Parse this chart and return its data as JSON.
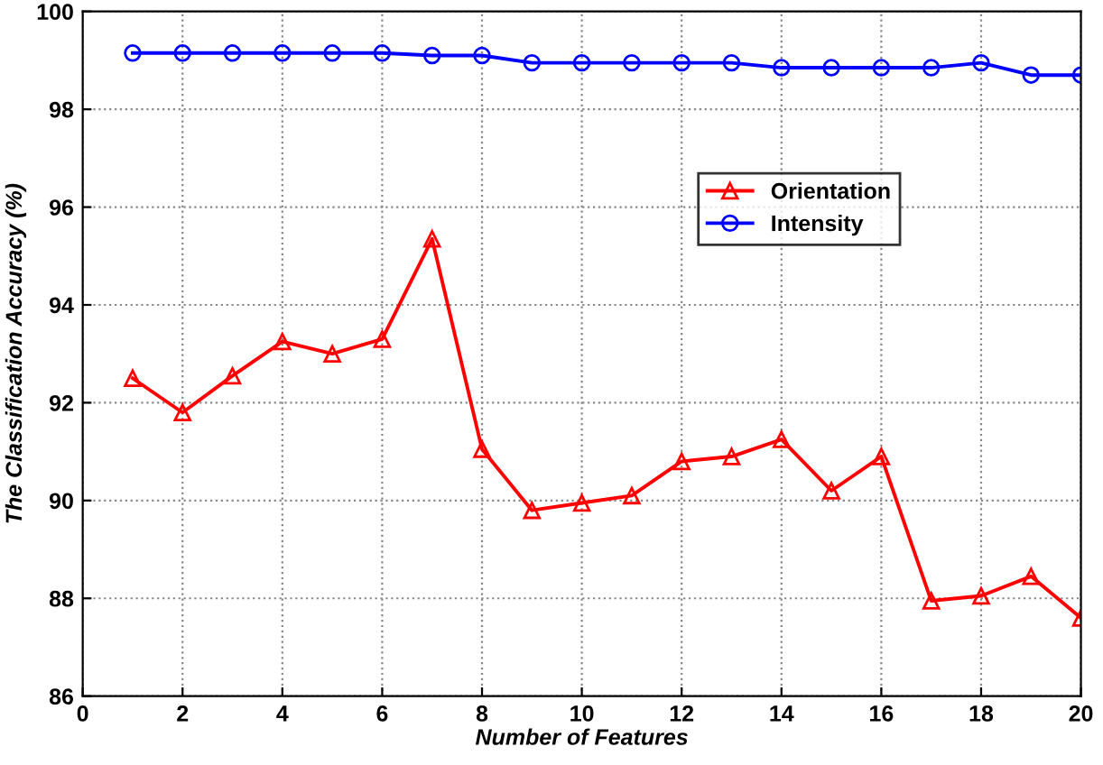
{
  "chart_data": {
    "type": "line",
    "xlabel": "Number of Features",
    "ylabel": "The Classification Accuracy (%)",
    "x": [
      1,
      2,
      3,
      4,
      5,
      6,
      7,
      8,
      9,
      10,
      11,
      12,
      13,
      14,
      15,
      16,
      17,
      18,
      19,
      20
    ],
    "series": [
      {
        "name": "Orientation",
        "color": "#ff0000",
        "marker": "triangle",
        "values": [
          92.5,
          91.8,
          92.55,
          93.25,
          93.0,
          93.3,
          95.35,
          91.05,
          89.8,
          89.95,
          90.1,
          90.8,
          90.9,
          91.25,
          90.2,
          90.9,
          87.95,
          88.05,
          88.45,
          87.6
        ]
      },
      {
        "name": "Intensity",
        "color": "#0000ff",
        "marker": "circle",
        "values": [
          99.15,
          99.15,
          99.15,
          99.15,
          99.15,
          99.15,
          99.1,
          99.1,
          98.95,
          98.95,
          98.95,
          98.95,
          98.95,
          98.85,
          98.85,
          98.85,
          98.85,
          98.95,
          98.7,
          98.7
        ]
      }
    ],
    "xlim": [
      0,
      20
    ],
    "xticks": [
      0,
      2,
      4,
      6,
      8,
      10,
      12,
      14,
      16,
      18,
      20
    ],
    "ylim": [
      86,
      100
    ],
    "yticks": [
      86,
      88,
      90,
      92,
      94,
      96,
      98,
      100
    ],
    "grid": true,
    "legend": "top right",
    "line_style": "solid"
  }
}
